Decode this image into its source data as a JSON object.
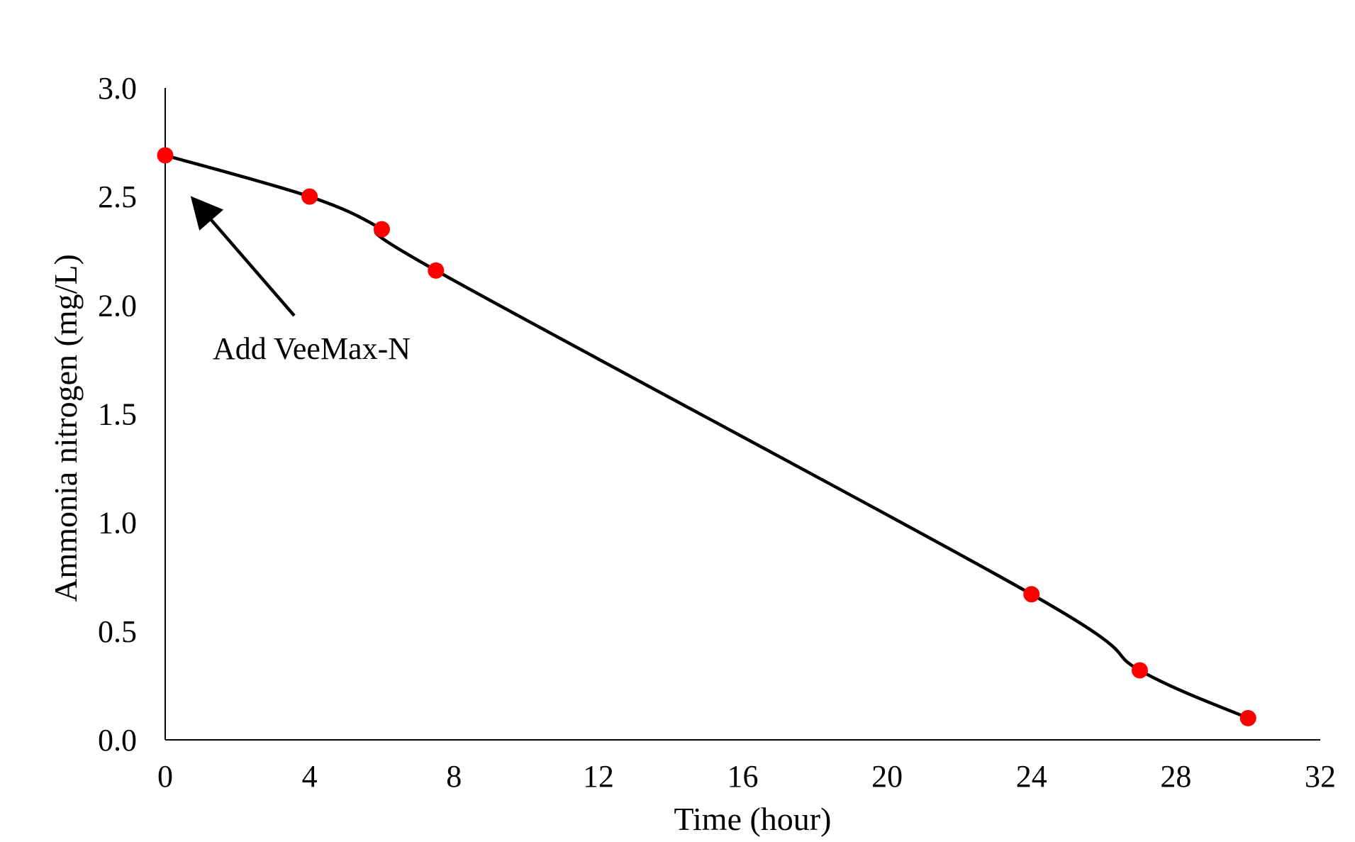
{
  "chart_data": {
    "type": "line",
    "title": "",
    "xlabel": "Time (hour)",
    "ylabel": "Ammonia nitrogen (mg/L)",
    "xlim": [
      0,
      32
    ],
    "ylim": [
      0,
      3.0
    ],
    "x_ticks": [
      0,
      4,
      8,
      12,
      16,
      20,
      24,
      28,
      32
    ],
    "x_tick_labels": [
      "0",
      "4",
      "8",
      "12",
      "16",
      "20",
      "24",
      "28",
      "32"
    ],
    "y_ticks": [
      0,
      0.5,
      1.0,
      1.5,
      2.0,
      2.5,
      3.0
    ],
    "y_tick_labels": [
      "0.0",
      "0.5",
      "1.0",
      "1.5",
      "2.0",
      "2.5",
      "3.0"
    ],
    "grid": false,
    "legend": "none",
    "series": [
      {
        "x": [
          0,
          4,
          6,
          7.5,
          24,
          27,
          30
        ],
        "y": [
          2.69,
          2.5,
          2.35,
          2.16,
          0.67,
          0.32,
          0.1
        ],
        "line_color": "#000000",
        "marker_color": "#ff0000",
        "smooth": true
      }
    ],
    "annotations": [
      {
        "text": "Add VeeMax-N",
        "points_to": {
          "x": 0.7,
          "y": 2.5
        },
        "arrow": true
      }
    ]
  }
}
